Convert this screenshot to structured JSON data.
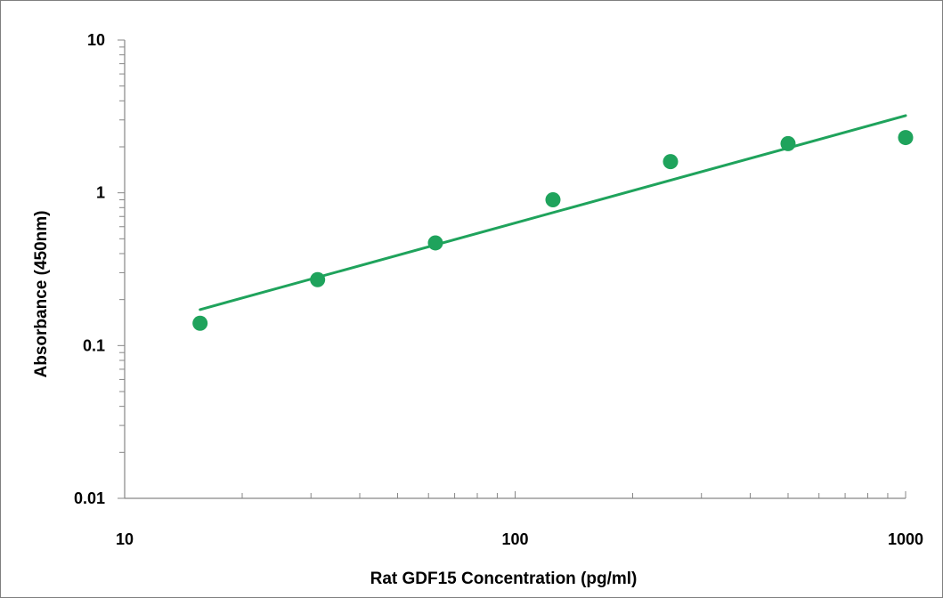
{
  "chart_data": {
    "type": "scatter",
    "xlabel": "Rat GDF15 Concentration (pg/ml)",
    "ylabel": "Absorbance (450nm)",
    "x_scale": "log",
    "y_scale": "log",
    "xlim": [
      10,
      1000
    ],
    "ylim": [
      0.01,
      10
    ],
    "x_ticks": [
      {
        "value": 10,
        "label": "10"
      },
      {
        "value": 100,
        "label": "100"
      },
      {
        "value": 1000,
        "label": "1000"
      }
    ],
    "y_ticks": [
      {
        "value": 10,
        "label": "10"
      },
      {
        "value": 1,
        "label": "1"
      },
      {
        "value": 0.1,
        "label": "0.1"
      },
      {
        "value": 0.01,
        "label": "0.01"
      }
    ],
    "grid": false,
    "legend": "none",
    "series": [
      {
        "type": "scatter",
        "color": "#1fa35c",
        "points": [
          {
            "x": 15.6,
            "y": 0.14
          },
          {
            "x": 31.2,
            "y": 0.27
          },
          {
            "x": 62.5,
            "y": 0.47
          },
          {
            "x": 125,
            "y": 0.9
          },
          {
            "x": 250,
            "y": 1.6
          },
          {
            "x": 500,
            "y": 2.1
          },
          {
            "x": 1000,
            "y": 2.3
          }
        ]
      },
      {
        "type": "line",
        "color": "#1fa35c",
        "points": [
          {
            "x": 15.6,
            "y": 0.172
          },
          {
            "x": 1000,
            "y": 3.2
          }
        ]
      }
    ]
  }
}
